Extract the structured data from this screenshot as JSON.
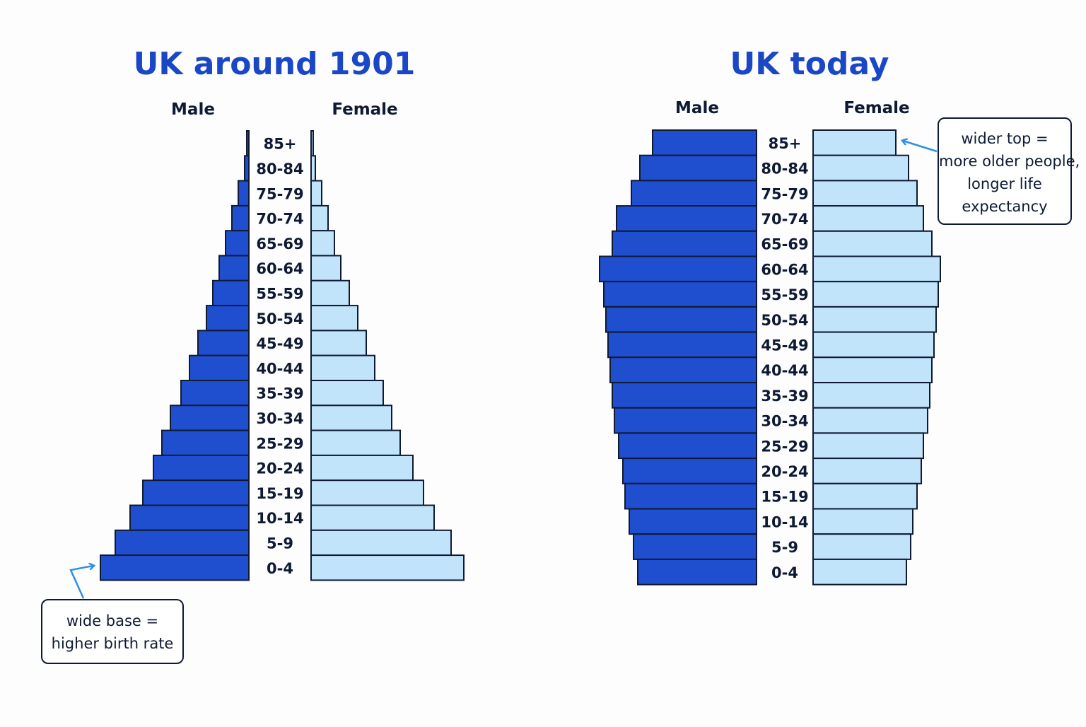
{
  "colors": {
    "male": "#1f4fcf",
    "female": "#c2e4fb",
    "outline": "#0e1a33",
    "title": "#1a47c6",
    "label": "#0e1a33",
    "arrow": "#2f8fe4"
  },
  "chart_data": [
    {
      "type": "bar",
      "orientation": "horizontal",
      "layout": "population-pyramid",
      "title": "UK around 1901",
      "male_label": "Male",
      "female_label": "Female",
      "categories": [
        "85+",
        "80-84",
        "75-79",
        "70-74",
        "65-69",
        "60-64",
        "55-59",
        "50-54",
        "45-49",
        "40-44",
        "35-39",
        "30-34",
        "25-29",
        "20-24",
        "15-19",
        "10-14",
        "5-9",
        "0-4"
      ],
      "series": [
        {
          "name": "Male",
          "values": [
            1,
            2,
            5,
            8,
            11,
            14,
            17,
            20,
            24,
            28,
            32,
            37,
            41,
            45,
            50,
            56,
            63,
            70
          ]
        },
        {
          "name": "Female",
          "values": [
            1,
            2,
            5,
            8,
            11,
            14,
            18,
            22,
            26,
            30,
            34,
            38,
            42,
            48,
            53,
            58,
            66,
            72
          ]
        }
      ],
      "annotation": {
        "lines": [
          "wide base =",
          "higher birth rate"
        ],
        "points_to": "0-4"
      }
    },
    {
      "type": "bar",
      "orientation": "horizontal",
      "layout": "population-pyramid",
      "title": "UK today",
      "male_label": "Male",
      "female_label": "Female",
      "categories": [
        "85+",
        "80-84",
        "75-79",
        "70-74",
        "65-69",
        "60-64",
        "55-59",
        "50-54",
        "45-49",
        "40-44",
        "35-39",
        "30-34",
        "25-29",
        "20-24",
        "15-19",
        "10-14",
        "5-9",
        "0-4"
      ],
      "series": [
        {
          "name": "Male",
          "values": [
            49,
            55,
            59,
            66,
            68,
            74,
            72,
            71,
            70,
            69,
            68,
            67,
            65,
            63,
            62,
            60,
            58,
            56
          ]
        },
        {
          "name": "Female",
          "values": [
            39,
            45,
            49,
            52,
            56,
            60,
            59,
            58,
            57,
            56,
            55,
            54,
            52,
            51,
            49,
            47,
            46,
            44
          ]
        }
      ],
      "annotation": {
        "lines": [
          "wider top =",
          "more older people,",
          "longer life",
          "expectancy"
        ],
        "points_to": "85+"
      }
    }
  ]
}
